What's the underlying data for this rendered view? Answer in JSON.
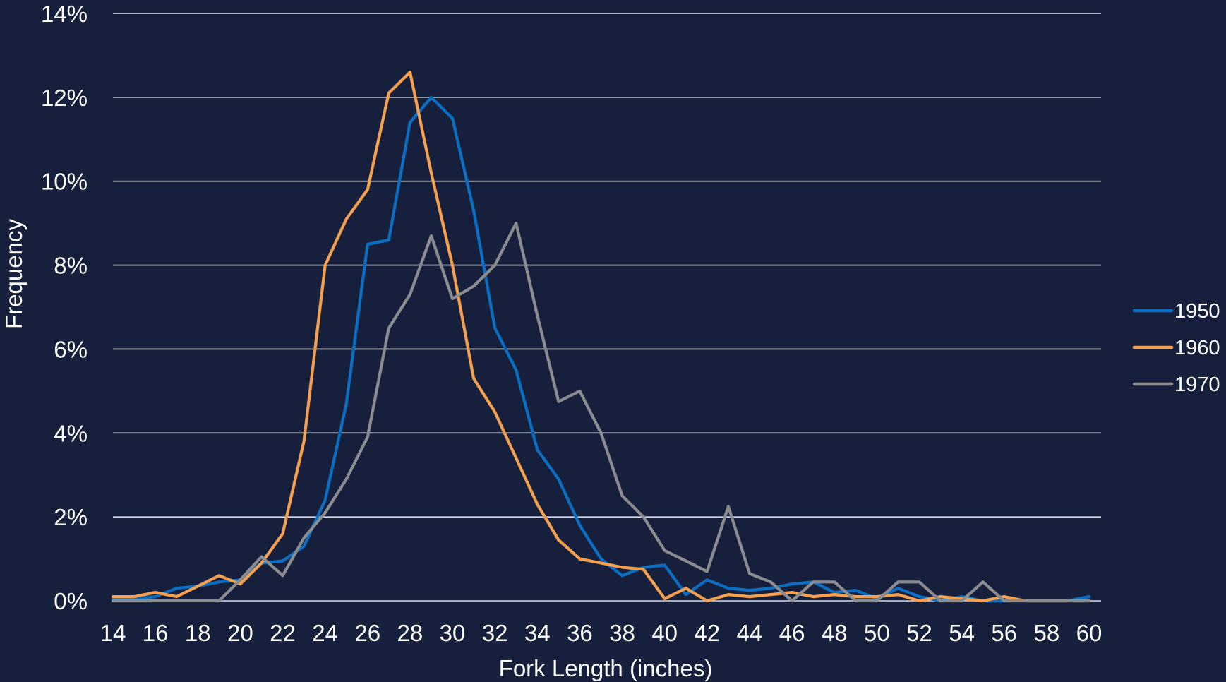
{
  "chart_data": {
    "type": "line",
    "title": "",
    "xlabel": "Fork Length (inches)",
    "ylabel": "Frequency",
    "xlim": [
      14,
      60
    ],
    "ylim": [
      0,
      14
    ],
    "y_tick_format": "percent",
    "y_ticks": [
      0,
      2,
      4,
      6,
      8,
      10,
      12,
      14
    ],
    "x_ticks": [
      14,
      16,
      18,
      20,
      22,
      24,
      26,
      28,
      30,
      32,
      34,
      36,
      38,
      40,
      42,
      44,
      46,
      48,
      50,
      52,
      54,
      56,
      58,
      60
    ],
    "grid": "horizontal",
    "legend": "right",
    "x": [
      14,
      15,
      16,
      17,
      18,
      19,
      20,
      21,
      22,
      23,
      24,
      25,
      26,
      27,
      28,
      29,
      30,
      31,
      32,
      33,
      34,
      35,
      36,
      37,
      38,
      39,
      40,
      41,
      42,
      43,
      44,
      45,
      46,
      47,
      48,
      49,
      50,
      51,
      52,
      53,
      54,
      55,
      56,
      57,
      58,
      59,
      60
    ],
    "series": [
      {
        "name": "1950",
        "color": "#0a6fc2",
        "values": [
          0.05,
          0.05,
          0.1,
          0.3,
          0.35,
          0.45,
          0.5,
          0.9,
          0.95,
          1.3,
          2.4,
          4.7,
          8.5,
          8.6,
          11.4,
          12.0,
          11.5,
          9.3,
          6.5,
          5.5,
          3.6,
          2.9,
          1.8,
          1.0,
          0.6,
          0.8,
          0.85,
          0.15,
          0.5,
          0.3,
          0.25,
          0.3,
          0.4,
          0.45,
          0.2,
          0.25,
          0.05,
          0.3,
          0.1,
          0.0,
          0.1,
          0.0,
          0.0,
          0.0,
          0.0,
          0.0,
          0.1
        ]
      },
      {
        "name": "1960",
        "color": "#f5a04e",
        "values": [
          0.1,
          0.1,
          0.2,
          0.1,
          0.35,
          0.6,
          0.4,
          0.9,
          1.6,
          3.8,
          8.0,
          9.1,
          9.8,
          12.1,
          12.6,
          10.2,
          8.0,
          5.3,
          4.5,
          3.4,
          2.3,
          1.45,
          1.0,
          0.9,
          0.8,
          0.75,
          0.05,
          0.3,
          0.0,
          0.15,
          0.1,
          0.15,
          0.2,
          0.1,
          0.15,
          0.1,
          0.1,
          0.15,
          0.0,
          0.1,
          0.05,
          0.0,
          0.1,
          0.0,
          0.0,
          0.0,
          0.0
        ]
      },
      {
        "name": "1970",
        "color": "#8a8c90",
        "values": [
          0.0,
          0.0,
          0.0,
          0.0,
          0.0,
          0.0,
          0.5,
          1.05,
          0.6,
          1.5,
          2.1,
          2.9,
          3.9,
          6.5,
          7.3,
          8.7,
          7.2,
          7.5,
          8.0,
          9.0,
          6.8,
          4.75,
          5.0,
          4.0,
          2.5,
          2.0,
          1.2,
          0.95,
          0.7,
          2.25,
          0.65,
          0.45,
          0.0,
          0.45,
          0.45,
          0.0,
          0.0,
          0.45,
          0.45,
          0.0,
          0.0,
          0.45,
          0.0,
          0.0,
          0.0,
          0.0,
          0.0
        ]
      }
    ]
  }
}
